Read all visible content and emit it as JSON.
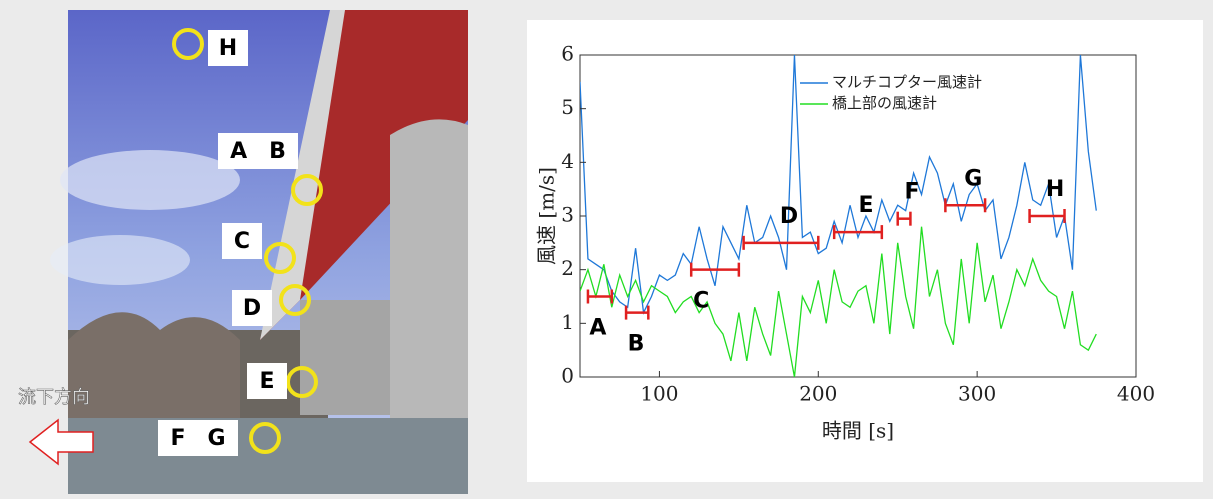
{
  "photo": {
    "labels": [
      "H",
      "A　B",
      "C",
      "D",
      "E",
      "F　G"
    ],
    "direction": "流下方向"
  },
  "chart_data": {
    "type": "line",
    "x_label": "時間 [s]",
    "y_label": "風速 [m/s]",
    "xlim": [
      50,
      400
    ],
    "xticks": [
      100,
      200,
      300,
      400
    ],
    "ylim": [
      0,
      6
    ],
    "yticks": [
      0,
      1,
      2,
      3,
      4,
      5,
      6
    ],
    "legend": "top-right",
    "x": [
      50,
      55,
      60,
      65,
      70,
      75,
      80,
      85,
      90,
      95,
      100,
      105,
      110,
      115,
      120,
      125,
      130,
      135,
      140,
      145,
      150,
      155,
      160,
      165,
      170,
      175,
      180,
      185,
      190,
      195,
      200,
      205,
      210,
      215,
      220,
      225,
      230,
      235,
      240,
      245,
      250,
      255,
      260,
      265,
      270,
      275,
      280,
      285,
      290,
      295,
      300,
      305,
      310,
      315,
      320,
      325,
      330,
      335,
      340,
      345,
      350,
      355,
      360,
      365,
      370,
      375
    ],
    "series": [
      {
        "name": "マルチコプター風速計",
        "color": "#1f78d8",
        "values": [
          5.5,
          2.2,
          2.1,
          2.0,
          1.6,
          1.4,
          1.3,
          2.4,
          1.2,
          1.5,
          1.9,
          1.8,
          1.9,
          2.3,
          2.1,
          2.8,
          2.2,
          1.7,
          2.8,
          2.5,
          2.2,
          3.2,
          2.5,
          2.6,
          3.0,
          2.6,
          2.0,
          6.0,
          2.6,
          2.7,
          2.3,
          2.4,
          2.9,
          2.5,
          3.2,
          2.6,
          3.0,
          2.7,
          3.3,
          2.9,
          3.2,
          3.1,
          3.8,
          3.4,
          4.1,
          3.8,
          3.2,
          3.6,
          2.9,
          3.4,
          3.6,
          3.1,
          3.3,
          2.2,
          2.6,
          3.2,
          4.0,
          3.3,
          3.2,
          3.6,
          2.6,
          3.0,
          2.0,
          6.0,
          4.2,
          3.1
        ]
      },
      {
        "name": "橋上部の風速計",
        "color": "#22dd22",
        "values": [
          1.6,
          2.0,
          1.5,
          2.1,
          1.3,
          1.9,
          1.5,
          1.8,
          1.4,
          1.7,
          1.6,
          1.5,
          1.2,
          1.4,
          1.5,
          1.2,
          1.4,
          1.0,
          0.8,
          0.3,
          1.2,
          0.3,
          1.3,
          0.8,
          0.4,
          1.6,
          0.8,
          0.0,
          1.5,
          1.2,
          1.8,
          1.0,
          2.0,
          1.4,
          1.3,
          1.6,
          1.7,
          1.0,
          2.3,
          0.8,
          2.5,
          1.5,
          0.9,
          2.8,
          1.5,
          2.0,
          1.0,
          0.6,
          2.2,
          1.0,
          2.5,
          1.4,
          1.9,
          0.9,
          1.4,
          2.0,
          1.7,
          2.2,
          1.8,
          1.6,
          1.5,
          0.9,
          1.6,
          0.6,
          0.5,
          0.8
        ]
      }
    ],
    "ranges": [
      {
        "label": "A",
        "start": 55,
        "end": 70,
        "value": 1.5
      },
      {
        "label": "B",
        "start": 79,
        "end": 93,
        "value": 1.2
      },
      {
        "label": "C",
        "start": 120,
        "end": 150,
        "value": 2.0
      },
      {
        "label": "D",
        "start": 153,
        "end": 200,
        "value": 2.5
      },
      {
        "label": "E",
        "start": 210,
        "end": 240,
        "value": 2.7
      },
      {
        "label": "F",
        "start": 250,
        "end": 258,
        "value": 2.95
      },
      {
        "label": "G",
        "start": 280,
        "end": 305,
        "value": 3.2
      },
      {
        "label": "H",
        "start": 333,
        "end": 355,
        "value": 3.0
      }
    ],
    "range_color": "#e02020"
  }
}
